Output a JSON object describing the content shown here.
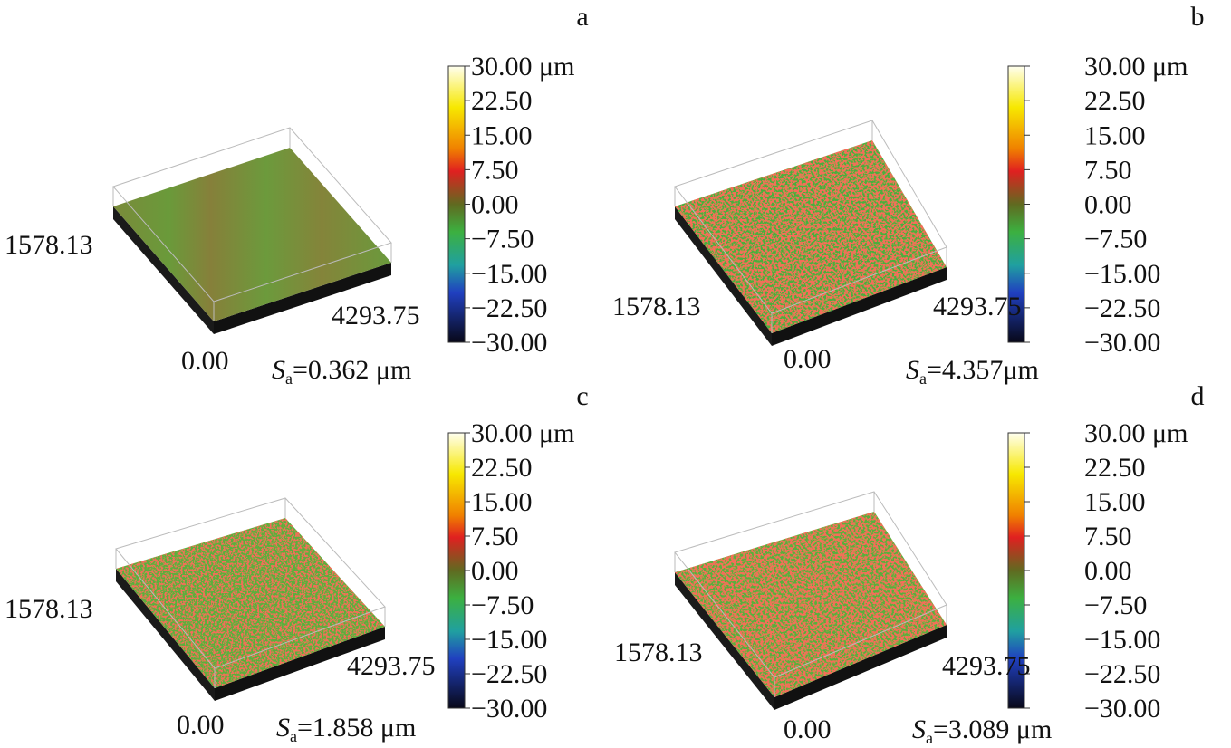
{
  "panels": [
    {
      "label": "a",
      "colorbar_ticks": [
        "30.00 μm",
        "22.50",
        "15.00",
        "7.50",
        "0.00",
        "−7.50",
        "−15.00",
        "−22.50",
        "−30.00"
      ],
      "y_axis": "1578.13",
      "x_axis": "4293.75",
      "origin": "0.00",
      "sa": {
        "symbol": "S",
        "subscript": "a",
        "value": "=0.362 μm"
      }
    },
    {
      "label": "b",
      "colorbar_ticks": [
        "30.00 μm",
        "22.50",
        "15.00",
        "7.50",
        "0.00",
        "−7.50",
        "−15.00",
        "−22.50",
        "−30.00"
      ],
      "y_axis": "1578.13",
      "x_axis": "4293.75",
      "origin": "0.00",
      "sa": {
        "symbol": "S",
        "subscript": "a",
        "value": "=4.357μm"
      }
    },
    {
      "label": "c",
      "colorbar_ticks": [
        "30.00 μm",
        "22.50",
        "15.00",
        "7.50",
        "0.00",
        "−7.50",
        "−15.00",
        "−22.50",
        "−30.00"
      ],
      "y_axis": "1578.13",
      "x_axis": "4293.75",
      "origin": "0.00",
      "sa": {
        "symbol": "S",
        "subscript": "a",
        "value": "=1.858 μm"
      }
    },
    {
      "label": "d",
      "colorbar_ticks": [
        "30.00 μm",
        "22.50",
        "15.00",
        "7.50",
        "0.00",
        "−7.50",
        "−15.00",
        "−22.50",
        "−30.00"
      ],
      "y_axis": "1578.13",
      "x_axis": "4293.75",
      "origin": "0.00",
      "sa": {
        "symbol": "S",
        "subscript": "a",
        "value": "=3.089 μm"
      }
    }
  ]
}
